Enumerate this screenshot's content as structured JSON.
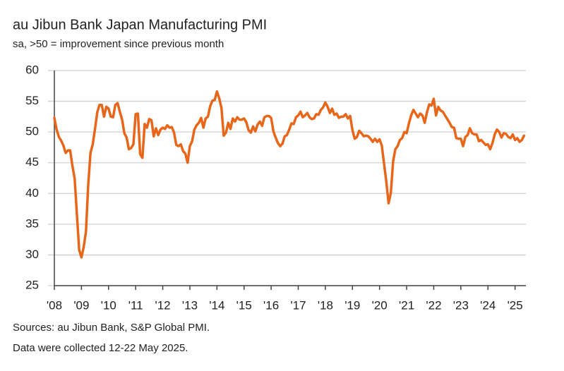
{
  "chart_data": {
    "type": "line",
    "title": "au Jibun Bank Japan Manufacturing PMI",
    "subtitle": "sa, >50 = improvement since previous month",
    "notes": [
      "Sources: au Jibun Bank, S&P Global PMI.",
      "Data were collected 12-22 May 2025."
    ],
    "x": [
      "2008-01",
      "2008-02",
      "2008-03",
      "2008-04",
      "2008-05",
      "2008-06",
      "2008-07",
      "2008-08",
      "2008-09",
      "2008-10",
      "2008-11",
      "2008-12",
      "2009-01",
      "2009-02",
      "2009-03",
      "2009-04",
      "2009-05",
      "2009-06",
      "2009-07",
      "2009-08",
      "2009-09",
      "2009-10",
      "2009-11",
      "2009-12",
      "2010-01",
      "2010-02",
      "2010-03",
      "2010-04",
      "2010-05",
      "2010-06",
      "2010-07",
      "2010-08",
      "2010-09",
      "2010-10",
      "2010-11",
      "2010-12",
      "2011-01",
      "2011-02",
      "2011-03",
      "2011-04",
      "2011-05",
      "2011-06",
      "2011-07",
      "2011-08",
      "2011-09",
      "2011-10",
      "2011-11",
      "2011-12",
      "2012-01",
      "2012-02",
      "2012-03",
      "2012-04",
      "2012-05",
      "2012-06",
      "2012-07",
      "2012-08",
      "2012-09",
      "2012-10",
      "2012-11",
      "2012-12",
      "2013-01",
      "2013-02",
      "2013-03",
      "2013-04",
      "2013-05",
      "2013-06",
      "2013-07",
      "2013-08",
      "2013-09",
      "2013-10",
      "2013-11",
      "2013-12",
      "2014-01",
      "2014-02",
      "2014-03",
      "2014-04",
      "2014-05",
      "2014-06",
      "2014-07",
      "2014-08",
      "2014-09",
      "2014-10",
      "2014-11",
      "2014-12",
      "2015-01",
      "2015-02",
      "2015-03",
      "2015-04",
      "2015-05",
      "2015-06",
      "2015-07",
      "2015-08",
      "2015-09",
      "2015-10",
      "2015-11",
      "2015-12",
      "2016-01",
      "2016-02",
      "2016-03",
      "2016-04",
      "2016-05",
      "2016-06",
      "2016-07",
      "2016-08",
      "2016-09",
      "2016-10",
      "2016-11",
      "2016-12",
      "2017-01",
      "2017-02",
      "2017-03",
      "2017-04",
      "2017-05",
      "2017-06",
      "2017-07",
      "2017-08",
      "2017-09",
      "2017-10",
      "2017-11",
      "2017-12",
      "2018-01",
      "2018-02",
      "2018-03",
      "2018-04",
      "2018-05",
      "2018-06",
      "2018-07",
      "2018-08",
      "2018-09",
      "2018-10",
      "2018-11",
      "2018-12",
      "2019-01",
      "2019-02",
      "2019-03",
      "2019-04",
      "2019-05",
      "2019-06",
      "2019-07",
      "2019-08",
      "2019-09",
      "2019-10",
      "2019-11",
      "2019-12",
      "2020-01",
      "2020-02",
      "2020-03",
      "2020-04",
      "2020-05",
      "2020-06",
      "2020-07",
      "2020-08",
      "2020-09",
      "2020-10",
      "2020-11",
      "2020-12",
      "2021-01",
      "2021-02",
      "2021-03",
      "2021-04",
      "2021-05",
      "2021-06",
      "2021-07",
      "2021-08",
      "2021-09",
      "2021-10",
      "2021-11",
      "2021-12",
      "2022-01",
      "2022-02",
      "2022-03",
      "2022-04",
      "2022-05",
      "2022-06",
      "2022-07",
      "2022-08",
      "2022-09",
      "2022-10",
      "2022-11",
      "2022-12",
      "2023-01",
      "2023-02",
      "2023-03",
      "2023-04",
      "2023-05",
      "2023-06",
      "2023-07",
      "2023-08",
      "2023-09",
      "2023-10",
      "2023-11",
      "2023-12",
      "2024-01",
      "2024-02",
      "2024-03",
      "2024-04",
      "2024-05",
      "2024-06",
      "2024-07",
      "2024-08",
      "2024-09",
      "2024-10",
      "2024-11",
      "2024-12",
      "2025-01",
      "2025-02",
      "2025-03",
      "2025-04",
      "2025-05"
    ],
    "series": [
      {
        "color": "#e8661a",
        "values": [
          52.3,
          50.4,
          49.2,
          48.6,
          47.8,
          46.6,
          47.0,
          47.0,
          44.5,
          42.4,
          36.5,
          30.8,
          29.6,
          31.3,
          33.8,
          41.4,
          46.6,
          48.0,
          50.5,
          53.2,
          54.4,
          54.4,
          52.5,
          54.1,
          53.8,
          52.5,
          52.4,
          54.4,
          54.7,
          53.3,
          52.0,
          49.8,
          49.1,
          47.2,
          47.4,
          48.0,
          52.9,
          53.0,
          46.4,
          45.8,
          51.3,
          50.7,
          52.1,
          51.9,
          49.3,
          50.6,
          49.5,
          50.4,
          50.7,
          50.5,
          51.1,
          50.7,
          50.8,
          49.9,
          47.9,
          47.7,
          48.0,
          46.9,
          46.5,
          45.0,
          47.7,
          48.5,
          50.4,
          51.1,
          51.5,
          52.3,
          50.7,
          52.2,
          52.5,
          54.2,
          55.1,
          55.2,
          56.6,
          55.5,
          53.9,
          49.4,
          49.9,
          51.5,
          50.5,
          52.2,
          51.7,
          52.4,
          52.0,
          52.0,
          52.2,
          51.6,
          50.3,
          49.9,
          50.9,
          50.1,
          51.2,
          51.7,
          51.0,
          52.4,
          52.6,
          52.6,
          52.3,
          50.1,
          49.1,
          48.2,
          47.7,
          48.1,
          49.3,
          49.5,
          50.4,
          51.4,
          51.3,
          52.4,
          52.7,
          53.3,
          52.4,
          52.7,
          53.1,
          52.4,
          52.1,
          52.2,
          52.9,
          52.8,
          53.6,
          54.0,
          54.8,
          54.1,
          53.1,
          53.8,
          52.8,
          53.0,
          52.3,
          52.5,
          52.5,
          52.9,
          52.2,
          52.6,
          50.3,
          48.9,
          49.2,
          50.2,
          49.8,
          49.3,
          49.4,
          49.3,
          48.9,
          48.4,
          48.9,
          48.4,
          48.8,
          47.8,
          44.8,
          41.9,
          38.4,
          40.1,
          45.2,
          47.2,
          47.7,
          48.7,
          49.0,
          50.0,
          49.8,
          51.4,
          52.7,
          53.6,
          53.0,
          52.4,
          53.0,
          52.7,
          51.5,
          53.2,
          54.5,
          54.3,
          55.4,
          52.7,
          54.1,
          53.5,
          53.3,
          52.7,
          52.1,
          51.5,
          50.8,
          50.7,
          49.0,
          48.9,
          48.9,
          47.7,
          49.2,
          49.5,
          50.6,
          49.8,
          49.6,
          49.6,
          48.5,
          48.7,
          48.3,
          47.9,
          48.0,
          47.2,
          48.2,
          49.6,
          50.4,
          50.0,
          49.1,
          49.8,
          49.7,
          49.2,
          49.0,
          49.6,
          48.7,
          49.0,
          48.4,
          48.7,
          49.4
        ]
      }
    ],
    "xlim": [
      2008,
      2025.4
    ],
    "xticks": [
      {
        "value": 2008,
        "label": "'08"
      },
      {
        "value": 2009,
        "label": "'09"
      },
      {
        "value": 2010,
        "label": "'10"
      },
      {
        "value": 2011,
        "label": "'11"
      },
      {
        "value": 2012,
        "label": "'12"
      },
      {
        "value": 2013,
        "label": "'13"
      },
      {
        "value": 2014,
        "label": "'14"
      },
      {
        "value": 2015,
        "label": "'15"
      },
      {
        "value": 2016,
        "label": "'16"
      },
      {
        "value": 2017,
        "label": "'17"
      },
      {
        "value": 2018,
        "label": "'18"
      },
      {
        "value": 2019,
        "label": "'19"
      },
      {
        "value": 2020,
        "label": "'20"
      },
      {
        "value": 2021,
        "label": "'21"
      },
      {
        "value": 2022,
        "label": "'22"
      },
      {
        "value": 2023,
        "label": "'23"
      },
      {
        "value": 2024,
        "label": "'24"
      },
      {
        "value": 2025,
        "label": "'25"
      }
    ],
    "ylim": [
      25,
      60
    ],
    "yticks": [
      25,
      30,
      35,
      40,
      45,
      50,
      55,
      60
    ],
    "grid": true
  }
}
